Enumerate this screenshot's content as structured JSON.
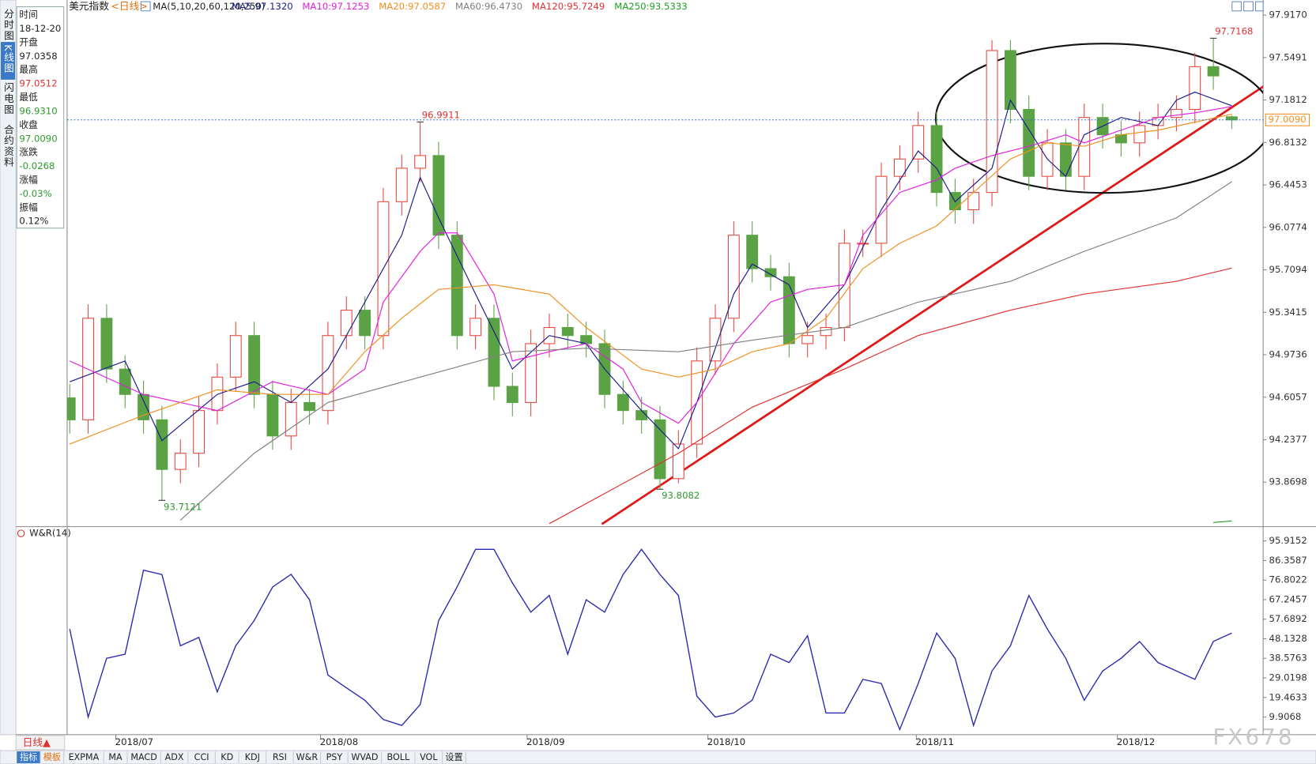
{
  "tabs_left": [
    "分时图",
    "K线图",
    "闪电图",
    "合约资料"
  ],
  "info": [
    {
      "label": "时间",
      "value": "18-12-20",
      "color": "#222"
    },
    {
      "label": "开盘",
      "value": "97.0358",
      "color": "#222"
    },
    {
      "label": "最高",
      "value": "97.0512",
      "color": "#e03030"
    },
    {
      "label": "最低",
      "value": "96.9310",
      "color": "#2e9a2e"
    },
    {
      "label": "收盘",
      "value": "97.0090",
      "color": "#2e9a2e"
    },
    {
      "label": "涨跌",
      "value": "-0.0268",
      "color": "#2e9a2e"
    },
    {
      "label": "涨幅",
      "value": "-0.03%",
      "color": "#2e9a2e"
    },
    {
      "label": "振幅",
      "value": "0.12%",
      "color": "#222"
    }
  ],
  "chart_data": [
    {
      "type": "candlestick",
      "title": "美元指数",
      "period": "<日线>",
      "indicator": "MA(5,10,20,60,120,250)",
      "up_color": "#e8453c",
      "down_color": "#5ba245",
      "open": [
        94.6,
        94.41,
        95.29,
        94.85,
        94.63,
        94.41,
        93.98,
        94.12,
        94.49,
        94.78,
        95.14,
        94.63,
        94.27,
        94.56,
        94.49,
        95.14,
        95.36,
        95.14,
        96.3,
        96.59,
        96.7,
        96.01,
        95.14,
        95.29,
        94.7,
        94.56,
        95.07,
        95.21,
        95.14,
        95.07,
        94.63,
        94.49,
        94.41,
        93.9,
        94.2,
        94.92,
        95.29,
        96.01,
        95.72,
        95.65,
        95.07,
        95.14,
        95.21,
        95.94,
        95.94,
        96.52,
        96.67,
        96.96,
        96.38,
        96.23,
        96.38,
        97.61,
        97.1,
        96.52,
        96.81,
        96.52,
        97.03,
        96.88,
        96.81,
        96.96,
        97.03,
        97.1,
        97.47,
        97.0358
      ],
      "high": [
        94.72,
        95.41,
        95.41,
        94.97,
        94.75,
        94.53,
        94.24,
        94.61,
        94.9,
        95.26,
        95.26,
        94.75,
        94.68,
        94.68,
        95.26,
        95.48,
        95.48,
        96.42,
        96.71,
        96.9911,
        96.82,
        96.13,
        95.41,
        95.41,
        94.82,
        95.19,
        95.33,
        95.33,
        95.26,
        95.19,
        94.75,
        94.61,
        94.53,
        94.32,
        95.04,
        95.41,
        96.13,
        96.13,
        95.84,
        95.77,
        95.26,
        95.33,
        96.06,
        96.06,
        96.64,
        96.79,
        97.08,
        97.08,
        96.5,
        96.5,
        97.7,
        97.7,
        97.22,
        96.93,
        96.93,
        97.15,
        97.15,
        97.0,
        97.08,
        97.15,
        97.22,
        97.59,
        97.7168,
        97.0512
      ],
      "low": [
        94.29,
        94.29,
        94.73,
        94.51,
        94.29,
        93.7121,
        93.86,
        94.0,
        94.37,
        94.66,
        94.51,
        94.15,
        94.15,
        94.37,
        94.37,
        95.02,
        95.02,
        95.02,
        96.18,
        96.47,
        95.89,
        95.02,
        95.02,
        94.58,
        94.44,
        94.44,
        94.95,
        95.02,
        94.95,
        94.51,
        94.37,
        94.29,
        93.8082,
        93.86,
        94.08,
        94.8,
        95.17,
        95.6,
        95.53,
        94.95,
        94.95,
        95.02,
        95.09,
        95.82,
        95.82,
        96.4,
        96.55,
        96.26,
        96.11,
        96.11,
        96.26,
        96.98,
        96.4,
        96.4,
        96.4,
        96.4,
        96.76,
        96.69,
        96.69,
        96.84,
        96.91,
        96.98,
        97.27,
        96.931
      ],
      "close": [
        94.41,
        95.29,
        94.85,
        94.63,
        94.41,
        93.98,
        94.12,
        94.49,
        94.78,
        95.14,
        94.63,
        94.27,
        94.56,
        94.49,
        95.14,
        95.36,
        95.14,
        96.3,
        96.59,
        96.7,
        96.01,
        95.14,
        95.29,
        94.7,
        94.56,
        95.07,
        95.21,
        95.14,
        95.07,
        94.63,
        94.49,
        94.41,
        93.9,
        94.2,
        94.92,
        95.29,
        96.01,
        95.72,
        95.65,
        95.07,
        95.14,
        95.21,
        95.94,
        95.94,
        96.52,
        96.67,
        96.96,
        96.38,
        96.23,
        96.38,
        97.61,
        97.1,
        96.52,
        96.81,
        96.52,
        97.03,
        96.88,
        96.81,
        96.96,
        97.03,
        97.1,
        97.47,
        97.39,
        97.009
      ],
      "series": [
        {
          "name": "MA5:97.1320",
          "color": "#1c1c8c",
          "x": [
            0,
            3,
            5,
            8,
            10,
            12,
            14,
            16,
            18,
            19,
            20,
            22,
            24,
            26,
            28,
            29,
            31,
            33,
            34,
            36,
            37,
            39,
            40,
            42,
            44,
            46,
            47,
            48,
            50,
            51,
            53,
            54,
            55,
            57,
            59,
            60,
            61,
            63
          ],
          "values": [
            94.74,
            94.92,
            94.23,
            94.63,
            94.74,
            94.56,
            94.85,
            95.43,
            96.01,
            96.51,
            96.16,
            95.5,
            94.85,
            95.14,
            95.07,
            94.85,
            94.49,
            94.16,
            94.56,
            95.5,
            95.76,
            95.58,
            95.21,
            95.58,
            96.23,
            96.74,
            96.59,
            96.3,
            96.59,
            97.18,
            96.67,
            96.52,
            96.88,
            97.03,
            96.96,
            97.18,
            97.25,
            97.132
          ]
        },
        {
          "name": "MA10:97.1253",
          "color": "#e020e0",
          "x": [
            0,
            4,
            8,
            11,
            14,
            16,
            17,
            19,
            20,
            21,
            23,
            24,
            26,
            28,
            30,
            31,
            33,
            34,
            36,
            38,
            40,
            42,
            43,
            45,
            47,
            48,
            50,
            52,
            54,
            55,
            57,
            59,
            61,
            63
          ],
          "values": [
            94.92,
            94.63,
            94.49,
            94.74,
            94.63,
            94.85,
            95.43,
            95.87,
            96.03,
            96.03,
            95.5,
            94.92,
            95.0,
            95.07,
            94.85,
            94.56,
            94.38,
            94.56,
            95.07,
            95.43,
            95.54,
            95.58,
            96.01,
            96.38,
            96.49,
            96.59,
            96.7,
            96.78,
            96.88,
            96.81,
            96.92,
            97.03,
            97.07,
            97.1253
          ]
        },
        {
          "name": "MA20:97.0587",
          "color": "#f09020",
          "x": [
            0,
            4,
            8,
            11,
            14,
            16,
            18,
            20,
            23,
            26,
            28,
            31,
            33,
            35,
            37,
            39,
            41,
            43,
            45,
            47,
            49,
            51,
            53,
            55,
            57,
            59,
            63
          ],
          "values": [
            94.2,
            94.45,
            94.67,
            94.63,
            94.63,
            95.0,
            95.29,
            95.54,
            95.58,
            95.5,
            95.21,
            94.85,
            94.78,
            94.85,
            95.0,
            95.07,
            95.29,
            95.72,
            95.94,
            96.09,
            96.38,
            96.67,
            96.81,
            96.78,
            96.88,
            96.92,
            97.0587
          ]
        },
        {
          "name": "MA60:96.4730",
          "color": "#808080",
          "x": [
            6,
            10,
            14,
            19,
            24,
            28,
            33,
            37,
            42,
            46,
            51,
            55,
            60,
            63
          ],
          "values": [
            93.54,
            94.12,
            94.56,
            94.78,
            95.0,
            95.03,
            95.0,
            95.1,
            95.21,
            95.43,
            95.61,
            95.87,
            96.16,
            96.473
          ]
        },
        {
          "name": "MA120:95.7249",
          "color": "#e03030",
          "x": [
            26,
            33,
            37,
            42,
            46,
            51,
            55,
            60,
            63
          ],
          "values": [
            93.51,
            94.12,
            94.52,
            94.85,
            95.14,
            95.36,
            95.5,
            95.61,
            95.7249
          ]
        },
        {
          "name": "MA250:93.5333",
          "color": "#20a020",
          "x": [
            62,
            63
          ],
          "values": [
            93.52,
            93.5333
          ]
        }
      ],
      "annotations": [
        {
          "x": 19,
          "value": 96.9911,
          "color": "#e03030"
        },
        {
          "x": 5,
          "value": 93.7121,
          "color": "#2e9a2e"
        },
        {
          "x": 32,
          "value": 93.8082,
          "color": "#2e9a2e"
        },
        {
          "x": 62,
          "value": 97.7168,
          "color": "#e03030"
        }
      ],
      "last_price": {
        "value": 97.009,
        "label": "97.0090"
      },
      "ylim": [
        93.5,
        98.0
      ],
      "yticks": [
        {
          "value": 97.917,
          "label": "97.9170"
        },
        97.5491,
        97.1812,
        96.8132,
        96.4453,
        96.0774,
        95.7094,
        95.3415,
        94.9736,
        94.6057,
        94.2377,
        93.8698
      ],
      "xlim": [
        -0.14,
        64.7
      ],
      "xticks": [
        {
          "value": 3.5,
          "label": "2018/07"
        },
        {
          "value": 14.6,
          "label": "2018/08"
        },
        {
          "value": 25.8,
          "label": "2018/09"
        },
        {
          "value": 35.6,
          "label": "2018/10"
        },
        {
          "value": 46.9,
          "label": "2018/11"
        },
        {
          "value": 57.8,
          "label": "2018/12"
        }
      ]
    },
    {
      "type": "line",
      "title": "W&R(14)",
      "color": "#2a2ab0",
      "values": [
        52.9,
        9.9,
        38.6,
        40.6,
        81.6,
        79.5,
        44.7,
        48.8,
        22.2,
        44.7,
        57.0,
        73.4,
        79.6,
        67.2,
        30.4,
        24.2,
        18.1,
        8.7,
        5.8,
        16.0,
        57.0,
        73.4,
        91.8,
        91.8,
        75.4,
        61.1,
        69.3,
        40.6,
        67.2,
        61.1,
        79.5,
        91.8,
        79.5,
        69.3,
        20.1,
        9.9,
        11.9,
        18.1,
        40.6,
        36.5,
        49.6,
        11.9,
        11.9,
        28.3,
        26.3,
        3.8,
        26.3,
        50.9,
        38.6,
        5.8,
        32.4,
        44.7,
        69.3,
        52.9,
        38.6,
        18.1,
        32.4,
        38.6,
        46.8,
        36.5,
        32.4,
        28.3,
        46.8,
        50.9
      ],
      "ylim": [
        0,
        100
      ],
      "yticks": [
        95.9152,
        86.3587,
        76.8022,
        67.2457,
        57.6892,
        48.1328,
        38.5763,
        29.0198,
        19.4633,
        9.9068
      ]
    }
  ],
  "bottom": {
    "period": "日线▲",
    "tabs": [
      "指标",
      "模板",
      "EXPMA",
      "MA",
      "MACD",
      "ADX",
      "CCI",
      "KD",
      "KDJ",
      "RSI",
      "W&R",
      "PSY",
      "WVAD",
      "BOLL",
      "VOL",
      "设置"
    ]
  },
  "watermark": "FX678"
}
